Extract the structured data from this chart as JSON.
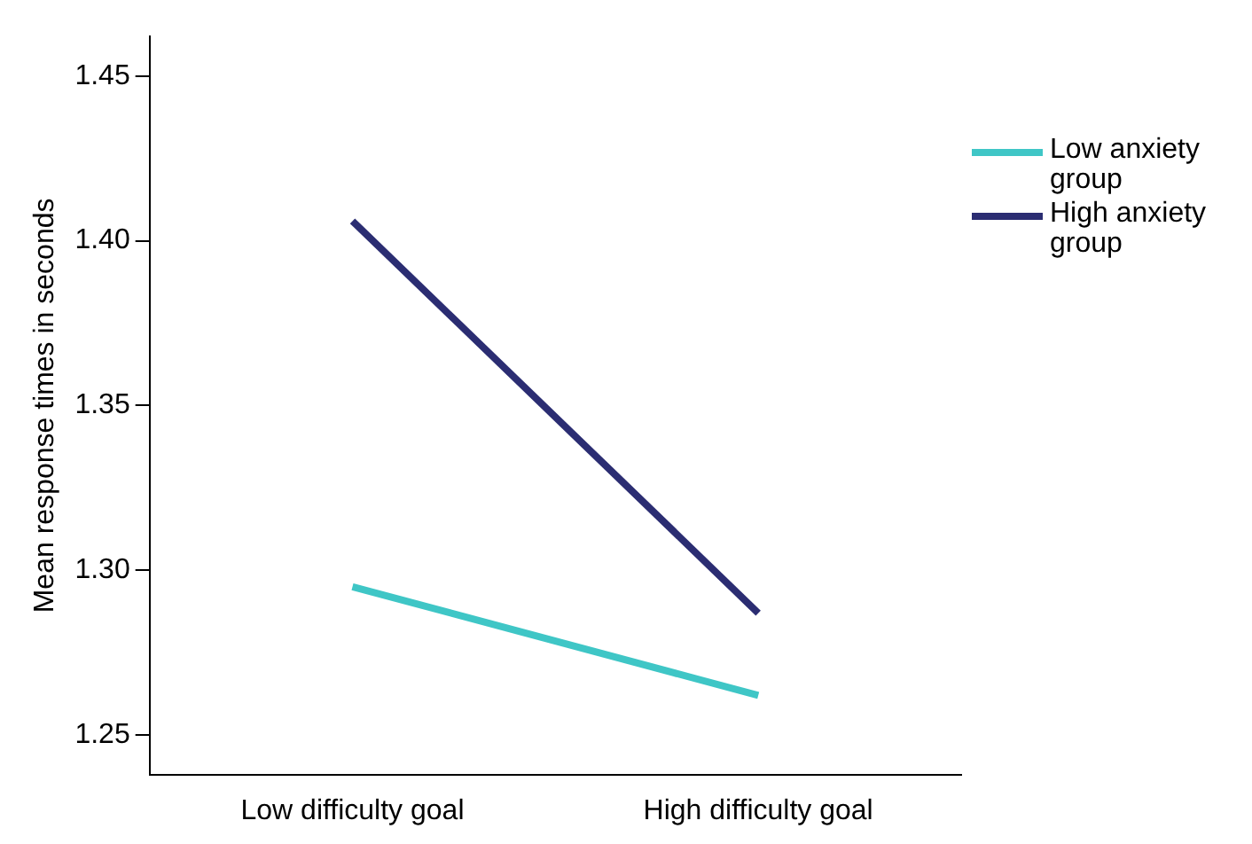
{
  "chart_data": {
    "type": "line",
    "ylabel": "Mean response times in seconds",
    "categories": [
      "Low difficulty goal",
      "High difficulty goal"
    ],
    "series": [
      {
        "name": "Low anxiety group",
        "color": "#3fc6c6",
        "values": [
          1.295,
          1.262
        ]
      },
      {
        "name": "High anxiety group",
        "color": "#2b2d72",
        "values": [
          1.406,
          1.287
        ]
      }
    ],
    "ylim": [
      1.238,
      1.462
    ],
    "yticks": [
      {
        "value": 1.25,
        "label": "1.25"
      },
      {
        "value": 1.3,
        "label": "1.30"
      },
      {
        "value": 1.35,
        "label": "1.35"
      },
      {
        "value": 1.4,
        "label": "1.40"
      },
      {
        "value": 1.45,
        "label": "1.45"
      }
    ],
    "grid": false,
    "legend": "right",
    "marker": "none",
    "line_style": "solid"
  }
}
